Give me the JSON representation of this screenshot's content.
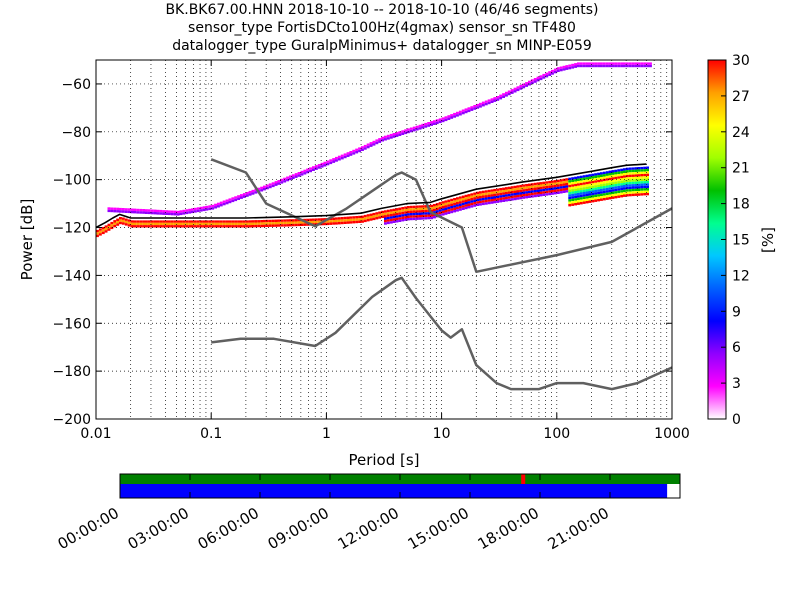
{
  "header": {
    "line1": "BK.BK67.00.HNN   2018-10-10 -- 2018-10-10  (46/46 segments)",
    "line2": "sensor_type FortisDCto100Hz(4gmax) sensor_sn TF480",
    "line3": "datalogger_type GuralpMinimus+ datalogger_sn MINP-E059"
  },
  "chart_data": [
    {
      "type": "heatmap",
      "xlabel": "Period [s]",
      "ylabel": "Power [dB]",
      "xscale": "log",
      "xlim": [
        0.01,
        1000
      ],
      "ylim": [
        -200,
        -50
      ],
      "xticks": [
        {
          "v": 0.01,
          "label": "0.01"
        },
        {
          "v": 0.1,
          "label": "0.1"
        },
        {
          "v": 1,
          "label": "1"
        },
        {
          "v": 10,
          "label": "10"
        },
        {
          "v": 100,
          "label": "100"
        },
        {
          "v": 1000,
          "label": "1000"
        }
      ],
      "yticks": [
        {
          "v": -60,
          "label": "−60"
        },
        {
          "v": -80,
          "label": "−80"
        },
        {
          "v": -100,
          "label": "−100"
        },
        {
          "v": -120,
          "label": "−120"
        },
        {
          "v": -140,
          "label": "−140"
        },
        {
          "v": -160,
          "label": "−160"
        },
        {
          "v": -180,
          "label": "−180"
        },
        {
          "v": -200,
          "label": "−200"
        }
      ],
      "grid": true,
      "colorbar": {
        "label": "[%]",
        "range": [
          0,
          30
        ],
        "ticks": [
          "0",
          "3",
          "6",
          "9",
          "12",
          "15",
          "18",
          "21",
          "24",
          "27",
          "30"
        ],
        "colors": [
          "#ffffff",
          "#ff00ff",
          "#9000ff",
          "#0000ff",
          "#0060ff",
          "#00c8ff",
          "#00ff90",
          "#00c000",
          "#a0ff00",
          "#ffff00",
          "#ffa000",
          "#ff0000"
        ]
      },
      "series": [
        {
          "color": "#606060",
          "points": [
            [
              0.1,
              -91.5
            ],
            [
              0.2,
              -97
            ],
            [
              0.3,
              -110
            ],
            [
              0.8,
              -119.5
            ],
            [
              1.5,
              -112
            ],
            [
              4,
              -98
            ],
            [
              4.5,
              -97
            ],
            [
              6,
              -100
            ],
            [
              8,
              -113.5
            ],
            [
              15,
              -120
            ],
            [
              20,
              -138.5
            ],
            [
              100,
              -131.5
            ],
            [
              300,
              -126
            ],
            [
              1000,
              -112
            ]
          ]
        },
        {
          "color": "#606060",
          "points": [
            [
              0.1,
              -168
            ],
            [
              0.18,
              -166.5
            ],
            [
              0.35,
              -166.5
            ],
            [
              0.8,
              -169.5
            ],
            [
              1.2,
              -164
            ],
            [
              2.5,
              -149
            ],
            [
              4,
              -142
            ],
            [
              4.5,
              -141
            ],
            [
              6,
              -149.5
            ],
            [
              10,
              -163
            ],
            [
              12,
              -166
            ],
            [
              15,
              -162.5
            ],
            [
              20,
              -177.5
            ],
            [
              30,
              -185
            ],
            [
              40,
              -187.5
            ],
            [
              70,
              -187.5
            ],
            [
              100,
              -185
            ],
            [
              170,
              -185
            ],
            [
              300,
              -187.5
            ],
            [
              500,
              -185
            ],
            [
              1000,
              -178.5
            ]
          ]
        },
        {
          "color": "#000000",
          "points": [
            [
              0.01,
              -120
            ],
            [
              0.012,
              -118
            ],
            [
              0.014,
              -116
            ],
            [
              0.016,
              -114.5
            ],
            [
              0.02,
              -116
            ],
            [
              0.05,
              -116
            ],
            [
              0.2,
              -116
            ],
            [
              0.5,
              -115.5
            ],
            [
              1,
              -115
            ],
            [
              2,
              -114
            ],
            [
              3,
              -112
            ],
            [
              5,
              -110
            ],
            [
              8,
              -109.5
            ],
            [
              10,
              -108
            ],
            [
              20,
              -104
            ],
            [
              50,
              -101
            ],
            [
              100,
              -99
            ],
            [
              200,
              -96.5
            ],
            [
              300,
              -95
            ],
            [
              400,
              -94
            ],
            [
              600,
              -93.5
            ]
          ]
        },
        {
          "color": "#b000ff",
          "points": [
            [
              0.012,
              -111.5
            ],
            [
              0.05,
              -113
            ],
            [
              0.1,
              -110.5
            ],
            [
              0.3,
              -102
            ],
            [
              1,
              -92
            ],
            [
              2,
              -86
            ],
            [
              3,
              -82
            ],
            [
              10,
              -74
            ],
            [
              30,
              -65
            ],
            [
              60,
              -58
            ],
            [
              100,
              -53
            ],
            [
              150,
              -51
            ],
            [
              650,
              -51
            ]
          ]
        }
      ]
    },
    {
      "type": "table",
      "xticks": [
        "00:00:00",
        "03:00:00",
        "06:00:00",
        "09:00:00",
        "12:00:00",
        "15:00:00",
        "18:00:00",
        "21:00:00"
      ],
      "top_bar": {
        "color": "#008000",
        "coverage": [
          0,
          1
        ],
        "marker": {
          "time_fraction": 0.72,
          "color": "#ff0000"
        }
      },
      "bottom_bar": {
        "color": "#0000ff",
        "coverage": [
          0,
          0.977
        ]
      }
    }
  ]
}
